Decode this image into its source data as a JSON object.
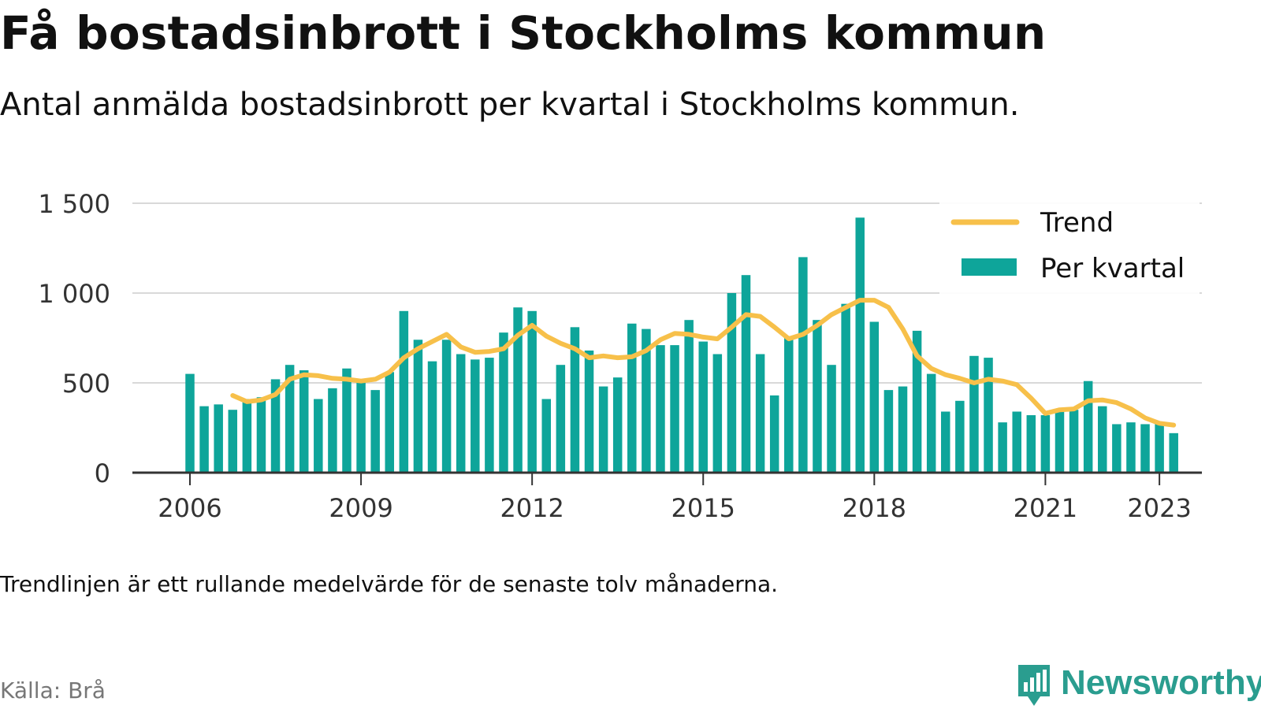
{
  "header": {
    "title": "Få bostadsinbrott i Stockholms kommun",
    "subtitle": "Antal anmälda bostadsinbrott per kvartal i Stockholms kommun."
  },
  "footer": {
    "note": "Trendlinjen är ett rullande medelvärde för de senaste tolv månaderna.",
    "source": "Källa: Brå",
    "brand": "Newsworthy"
  },
  "colors": {
    "bar": "#0ea59a",
    "trend": "#f7c04a",
    "grid": "#d9d9d9",
    "axis": "#333333",
    "brand": "#2a9d8f"
  },
  "chart_data": {
    "type": "bar",
    "x_range": [
      "2006 Q1",
      "2023 Q2"
    ],
    "ylim": [
      0,
      1500
    ],
    "y_ticks": [
      {
        "value": 0,
        "label": "0"
      },
      {
        "value": 500,
        "label": "500"
      },
      {
        "value": 1000,
        "label": "1 000"
      },
      {
        "value": 1500,
        "label": "1 500"
      }
    ],
    "x_ticks": [
      {
        "value": "2006",
        "label": "2006"
      },
      {
        "value": "2009",
        "label": "2009"
      },
      {
        "value": "2012",
        "label": "2012"
      },
      {
        "value": "2015",
        "label": "2015"
      },
      {
        "value": "2018",
        "label": "2018"
      },
      {
        "value": "2021",
        "label": "2021"
      },
      {
        "value": "2023",
        "label": "2023"
      }
    ],
    "grid": true,
    "legend_position": "top-right",
    "series": [
      {
        "name": "Per kvartal",
        "type": "bar",
        "values": [
          550,
          370,
          380,
          350,
          410,
          420,
          520,
          600,
          570,
          410,
          470,
          580,
          520,
          460,
          560,
          900,
          740,
          620,
          740,
          660,
          630,
          640,
          780,
          920,
          900,
          410,
          600,
          810,
          680,
          480,
          530,
          830,
          800,
          710,
          710,
          850,
          730,
          660,
          1000,
          1100,
          660,
          430,
          760,
          1200,
          850,
          600,
          940,
          1420,
          840,
          460,
          480,
          790,
          550,
          340,
          400,
          650,
          640,
          280,
          340,
          320,
          320,
          350,
          350,
          510,
          370,
          270,
          280,
          270,
          280,
          220
        ]
      },
      {
        "name": "Trend",
        "type": "line",
        "values": [
          null,
          null,
          null,
          430,
          395,
          405,
          435,
          520,
          545,
          540,
          525,
          520,
          510,
          520,
          560,
          640,
          690,
          730,
          770,
          700,
          670,
          675,
          690,
          765,
          820,
          760,
          720,
          690,
          640,
          650,
          640,
          645,
          680,
          740,
          775,
          770,
          755,
          745,
          810,
          880,
          870,
          810,
          745,
          770,
          820,
          880,
          920,
          960,
          960,
          920,
          800,
          650,
          580,
          545,
          525,
          500,
          520,
          510,
          490,
          415,
          330,
          350,
          355,
          400,
          405,
          390,
          355,
          305,
          275,
          265
        ]
      }
    ]
  }
}
